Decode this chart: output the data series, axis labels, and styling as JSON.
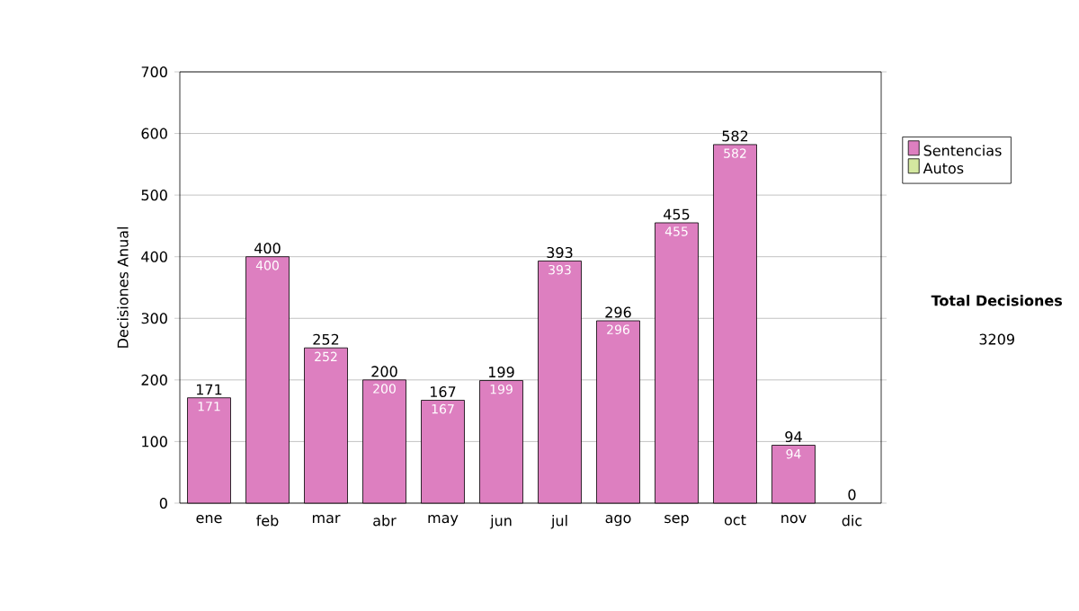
{
  "chart_data": {
    "type": "bar",
    "stacked": true,
    "ylabel": "Decisiones Anual",
    "categories": [
      "ene",
      "feb",
      "mar",
      "abr",
      "may",
      "jun",
      "jul",
      "ago",
      "sep",
      "oct",
      "nov",
      "dic"
    ],
    "series": [
      {
        "name": "Sentencias",
        "color": "#dd7fc0",
        "values": [
          171,
          400,
          252,
          200,
          167,
          199,
          393,
          296,
          455,
          582,
          94,
          0
        ],
        "value_labels": [
          "171",
          "400",
          "252",
          "200",
          "167",
          "199",
          "393",
          "296",
          "455",
          "582",
          "94",
          null
        ]
      },
      {
        "name": "Autos",
        "color": "#d4e8a0",
        "values": [
          0,
          0,
          0,
          0,
          0,
          0,
          0,
          0,
          0,
          0,
          0,
          0
        ],
        "value_labels": [
          null,
          null,
          null,
          null,
          null,
          null,
          null,
          null,
          null,
          null,
          null,
          null
        ]
      }
    ],
    "ylim": [
      0,
      700
    ],
    "yticks": [
      0,
      100,
      200,
      300,
      400,
      500,
      600,
      700
    ],
    "grid": "y",
    "legend": "right",
    "totals": [
      "171",
      "400",
      "252",
      "200",
      "167",
      "199",
      "393",
      "296",
      "455",
      "582",
      "94",
      "0"
    ],
    "annotations": [
      "Total Decisiones",
      "3209"
    ]
  }
}
